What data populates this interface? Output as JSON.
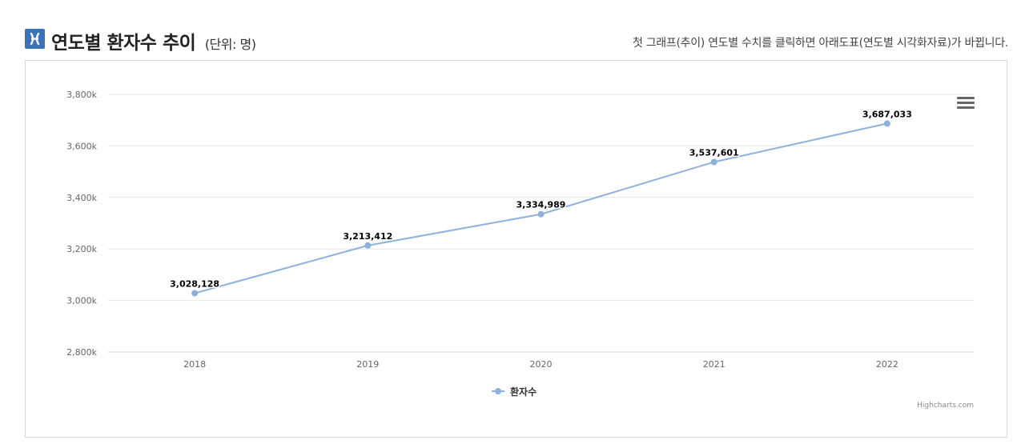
{
  "header": {
    "title": "연도별 환자수 추이",
    "unit": "(단위: 명)",
    "subtitle": "첫 그래프(추이) 연도별 수치를 클릭하면 아래도표(연도별 시각화자료)가 바뀝니다."
  },
  "colors": {
    "accent": "#3a73b8",
    "series": "#8eb1dc",
    "grid": "#e6e6e6",
    "axis": "#ccd6eb"
  },
  "chart_data": {
    "type": "line",
    "title": "연도별 환자수 추이",
    "xlabel": "",
    "ylabel": "",
    "x": [
      "2018",
      "2019",
      "2020",
      "2021",
      "2022"
    ],
    "series": [
      {
        "name": "환자수",
        "values": [
          3028128,
          3213412,
          3334989,
          3537601,
          3687033
        ],
        "labels": [
          "3,028,128",
          "3,213,412",
          "3,334,989",
          "3,537,601",
          "3,687,033"
        ]
      }
    ],
    "ylim": [
      2800000,
      3800000
    ],
    "yticks": [
      2800000,
      3000000,
      3200000,
      3400000,
      3600000,
      3800000
    ],
    "ytick_labels": [
      "2,800k",
      "3,000k",
      "3,200k",
      "3,400k",
      "3,600k",
      "3,800k"
    ],
    "grid": true,
    "legend": "bottom-center"
  },
  "menu": {
    "icon": "hamburger-menu-icon"
  },
  "credits": "Highcharts.com"
}
